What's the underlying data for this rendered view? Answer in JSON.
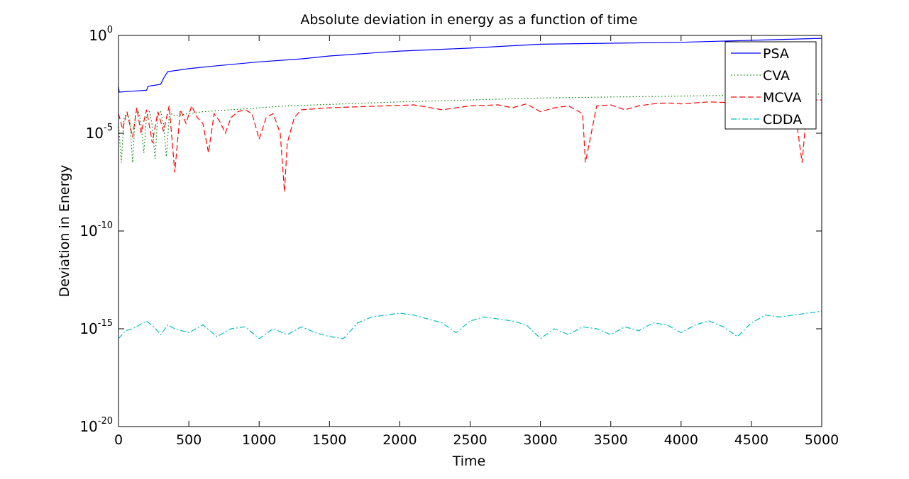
{
  "chart_data": {
    "type": "line",
    "title": "Absolute deviation in energy as a function of time",
    "xlabel": "Time",
    "ylabel": "Deviation in Energy",
    "xlim": [
      0,
      5000
    ],
    "ylim": [
      1e-20,
      1
    ],
    "yscale": "log",
    "xticks": [
      0,
      500,
      1000,
      1500,
      2000,
      2500,
      3000,
      3500,
      4000,
      4500,
      5000
    ],
    "xtick_labels": [
      "0",
      "500",
      "1000",
      "1500",
      "2000",
      "2500",
      "3000",
      "3500",
      "4000",
      "4500",
      "5000"
    ],
    "yticks": [
      {
        "base": "10",
        "exp": "-20",
        "value": -20
      },
      {
        "base": "10",
        "exp": "-15",
        "value": -15
      },
      {
        "base": "10",
        "exp": "-10",
        "value": -10
      },
      {
        "base": "10",
        "exp": "-5",
        "value": -5
      },
      {
        "base": "10",
        "exp": "0",
        "value": 0
      }
    ],
    "grid": false,
    "legend_position": "top-right",
    "series": [
      {
        "name": "PSA",
        "color": "#0000ff",
        "style": "solid",
        "x": [
          0,
          5,
          100,
          200,
          210,
          300,
          320,
          350,
          400,
          500,
          700,
          1000,
          1300,
          1500,
          1800,
          2000,
          2500,
          3000,
          3500,
          4000,
          4500,
          5000
        ],
        "log10_y": [
          -2.6,
          -2.9,
          -2.85,
          -2.8,
          -2.6,
          -2.5,
          -2.2,
          -1.85,
          -1.8,
          -1.7,
          -1.55,
          -1.35,
          -1.2,
          -1.05,
          -0.9,
          -0.8,
          -0.65,
          -0.45,
          -0.4,
          -0.35,
          -0.25,
          -0.15
        ]
      },
      {
        "name": "CVA",
        "color": "#008000",
        "style": "dotted",
        "x": [
          0,
          20,
          40,
          60,
          80,
          100,
          120,
          140,
          160,
          180,
          200,
          220,
          240,
          260,
          280,
          300,
          320,
          340,
          360,
          380,
          400,
          600,
          800,
          1000,
          1200,
          1400,
          1600,
          1800,
          2000,
          2500,
          3000,
          3500,
          4000,
          4500,
          5000
        ],
        "log10_y": [
          -4.5,
          -6.5,
          -4.2,
          -4.0,
          -4.3,
          -6.5,
          -4.0,
          -3.8,
          -4.5,
          -6.0,
          -4.1,
          -3.9,
          -4.6,
          -6.3,
          -4.0,
          -3.9,
          -4.5,
          -6.2,
          -4.2,
          -4.0,
          -4.1,
          -3.9,
          -3.8,
          -3.7,
          -3.6,
          -3.55,
          -3.5,
          -3.45,
          -3.4,
          -3.3,
          -3.2,
          -3.15,
          -3.1,
          -3.05,
          -3.0
        ]
      },
      {
        "name": "MCVA",
        "color": "#ff0000",
        "style": "dashed",
        "x": [
          0,
          30,
          60,
          100,
          130,
          160,
          200,
          240,
          280,
          320,
          360,
          400,
          440,
          480,
          520,
          560,
          600,
          640,
          680,
          720,
          760,
          800,
          850,
          900,
          950,
          1000,
          1050,
          1100,
          1150,
          1180,
          1200,
          1250,
          1300,
          1400,
          1500,
          1700,
          1900,
          2100,
          2300,
          2500,
          2700,
          2800,
          2900,
          3000,
          3100,
          3200,
          3300,
          3320,
          3400,
          3500,
          3600,
          3700,
          3800,
          3900,
          4000,
          4200,
          4400,
          4600,
          4800,
          4860,
          4900,
          5000
        ],
        "log10_y": [
          -4.0,
          -4.8,
          -3.9,
          -5.2,
          -3.7,
          -5.0,
          -3.8,
          -5.5,
          -3.9,
          -4.9,
          -3.6,
          -7.0,
          -3.8,
          -4.5,
          -3.6,
          -4.2,
          -4.5,
          -6.0,
          -4.0,
          -4.4,
          -5.0,
          -4.2,
          -3.9,
          -3.8,
          -4.0,
          -5.3,
          -4.2,
          -4.0,
          -5.0,
          -8.0,
          -5.5,
          -4.2,
          -3.8,
          -3.75,
          -3.7,
          -3.65,
          -3.6,
          -3.55,
          -3.8,
          -3.6,
          -3.55,
          -3.7,
          -3.5,
          -3.9,
          -3.7,
          -3.6,
          -4.0,
          -6.5,
          -3.6,
          -3.55,
          -3.8,
          -3.6,
          -3.5,
          -3.45,
          -3.5,
          -3.4,
          -3.45,
          -3.4,
          -3.3,
          -6.5,
          -3.3,
          -3.3
        ]
      },
      {
        "name": "CDDA",
        "color": "#00bfbf",
        "style": "dashdot",
        "x": [
          0,
          50,
          100,
          150,
          200,
          250,
          300,
          350,
          400,
          500,
          600,
          700,
          800,
          900,
          1000,
          1100,
          1200,
          1300,
          1400,
          1500,
          1600,
          1700,
          1800,
          1900,
          2000,
          2100,
          2200,
          2300,
          2400,
          2500,
          2600,
          2700,
          2800,
          2900,
          3000,
          3100,
          3200,
          3300,
          3400,
          3500,
          3600,
          3700,
          3800,
          3900,
          4000,
          4100,
          4200,
          4300,
          4400,
          4500,
          4600,
          4700,
          4800,
          4900,
          5000
        ],
        "log10_y": [
          -15.5,
          -15.1,
          -15.0,
          -14.8,
          -14.6,
          -14.9,
          -15.3,
          -14.8,
          -15.0,
          -15.2,
          -14.8,
          -15.4,
          -15.0,
          -14.9,
          -15.5,
          -15.0,
          -15.3,
          -14.9,
          -15.2,
          -15.4,
          -15.5,
          -14.7,
          -14.4,
          -14.3,
          -14.2,
          -14.3,
          -14.5,
          -14.7,
          -15.2,
          -14.6,
          -14.4,
          -14.5,
          -14.6,
          -14.8,
          -15.5,
          -15.0,
          -15.3,
          -14.9,
          -15.0,
          -15.3,
          -14.9,
          -15.1,
          -14.7,
          -14.8,
          -15.2,
          -14.8,
          -14.6,
          -14.9,
          -15.4,
          -14.7,
          -14.3,
          -14.4,
          -14.3,
          -14.2,
          -14.1
        ]
      }
    ]
  }
}
